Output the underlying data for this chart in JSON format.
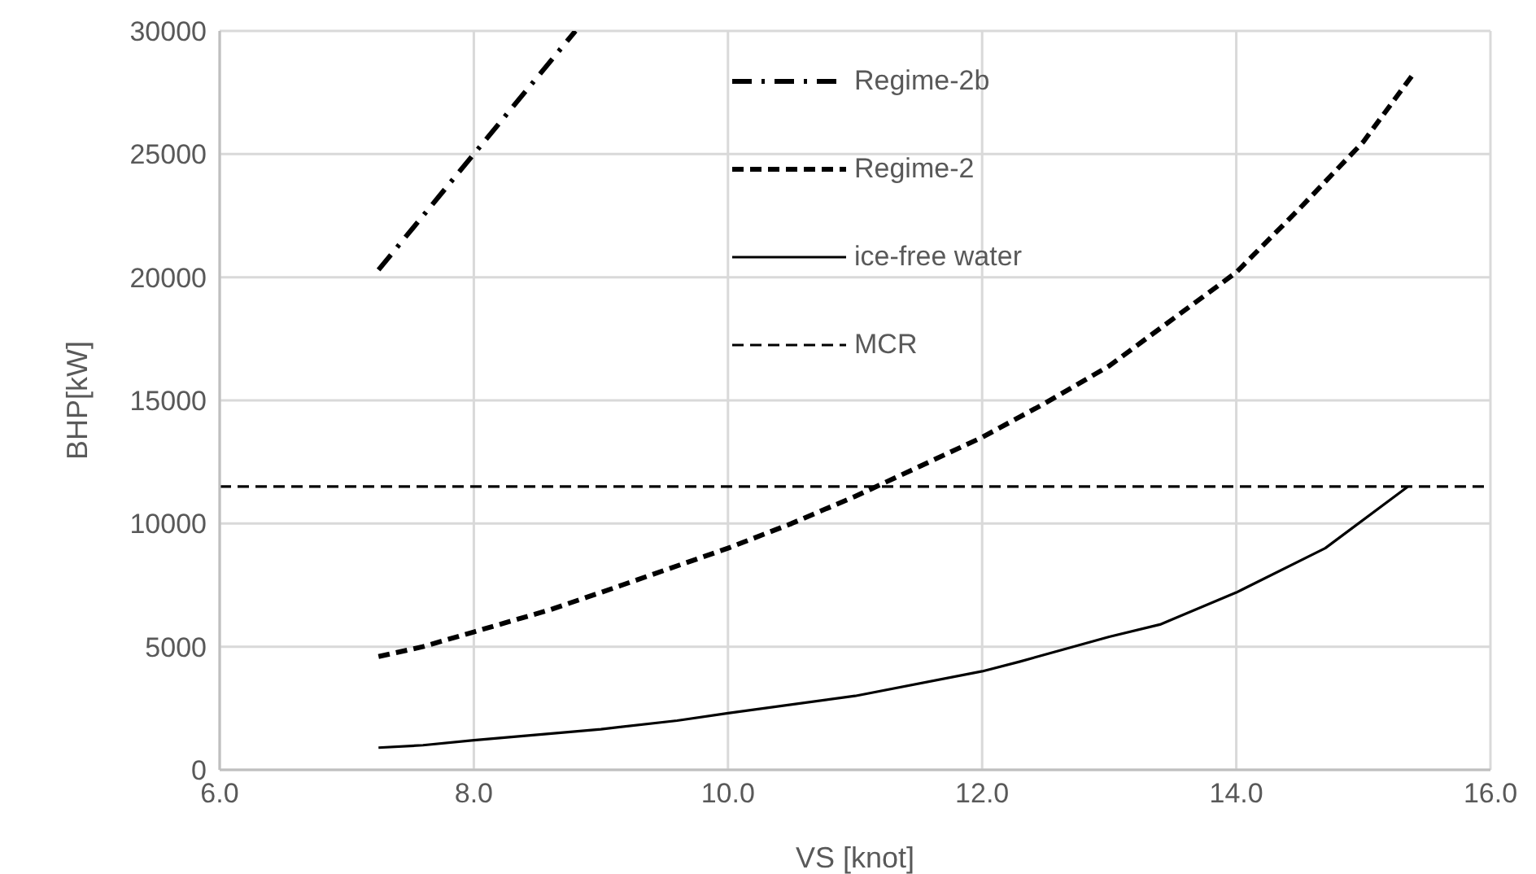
{
  "chart_data": {
    "type": "line",
    "xlabel": "VS [knot]",
    "ylabel": "BHP[kW]",
    "xlim": [
      6,
      16
    ],
    "xticks": [
      {
        "value": 6,
        "label": "6.0"
      },
      {
        "value": 8,
        "label": "8.0"
      },
      {
        "value": 10,
        "label": "10.0"
      },
      {
        "value": 12,
        "label": "12.0"
      },
      {
        "value": 14,
        "label": "14.0"
      },
      {
        "value": 16,
        "label": "16.0"
      }
    ],
    "ylim": [
      0,
      30000
    ],
    "yticks": [
      0,
      5000,
      10000,
      15000,
      20000,
      25000,
      30000
    ],
    "grid": true,
    "legend": "top",
    "marker": "none",
    "series": [
      {
        "name": "Regime-2b",
        "color": "#000000",
        "line_style": "dashdot",
        "x": [
          7.25,
          8.0,
          8.8
        ],
        "values": [
          20300,
          25000,
          30000
        ]
      },
      {
        "name": "Regime-2",
        "color": "#000000",
        "line_style": "dashed",
        "x": [
          7.25,
          7.6,
          8.0,
          8.6,
          9.0,
          9.5,
          10.0,
          10.5,
          11.0,
          11.5,
          12.0,
          12.5,
          13.0,
          13.5,
          14.0,
          14.5,
          15.0,
          15.4
        ],
        "values": [
          4600,
          5000,
          5600,
          6500,
          7200,
          8100,
          9000,
          10000,
          11100,
          12300,
          13500,
          14900,
          16400,
          18300,
          20200,
          22800,
          25500,
          28300
        ]
      },
      {
        "name": "ice-free water",
        "color": "#000000",
        "line_style": "solid",
        "x": [
          7.25,
          7.6,
          8.0,
          9.0,
          9.6,
          10.0,
          11.0,
          12.0,
          12.3,
          13.0,
          13.4,
          14.0,
          14.7,
          15.35
        ],
        "values": [
          900,
          1000,
          1200,
          1650,
          2000,
          2300,
          3000,
          4000,
          4400,
          5400,
          5900,
          7200,
          9000,
          11500
        ]
      },
      {
        "name": "MCR",
        "color": "#000000",
        "line_style": "dashed",
        "x": [
          6,
          16
        ],
        "values": [
          11500,
          11500
        ]
      }
    ]
  }
}
